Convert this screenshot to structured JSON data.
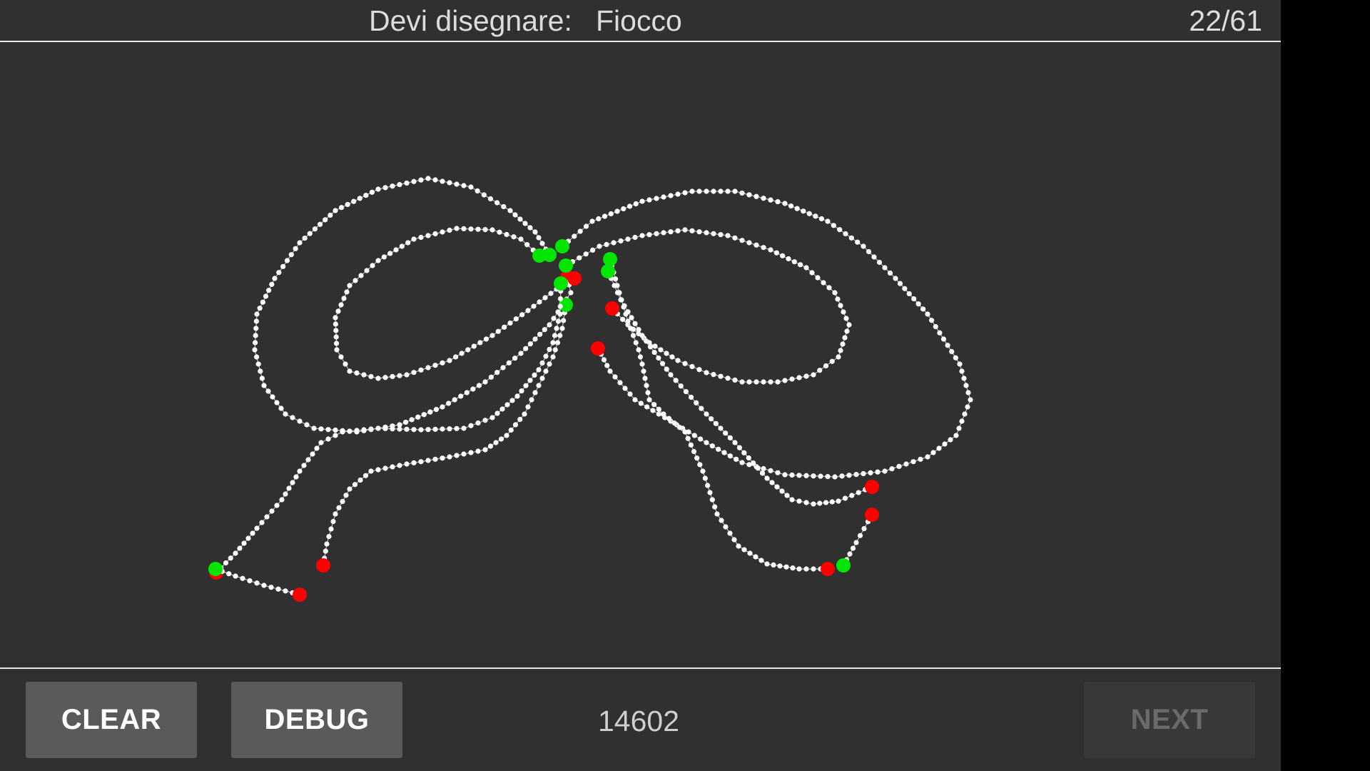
{
  "header": {
    "prompt_label": "Devi disegnare:",
    "prompt_word": "Fiocco",
    "progress": "22/61"
  },
  "footer": {
    "clear_label": "CLEAR",
    "debug_label": "DEBUG",
    "score": "14602",
    "next_label": "NEXT"
  },
  "colors": {
    "background": "#303030",
    "stroke": "#ffffff",
    "stroke_start": "#00e600",
    "stroke_end": "#ff0000"
  }
}
